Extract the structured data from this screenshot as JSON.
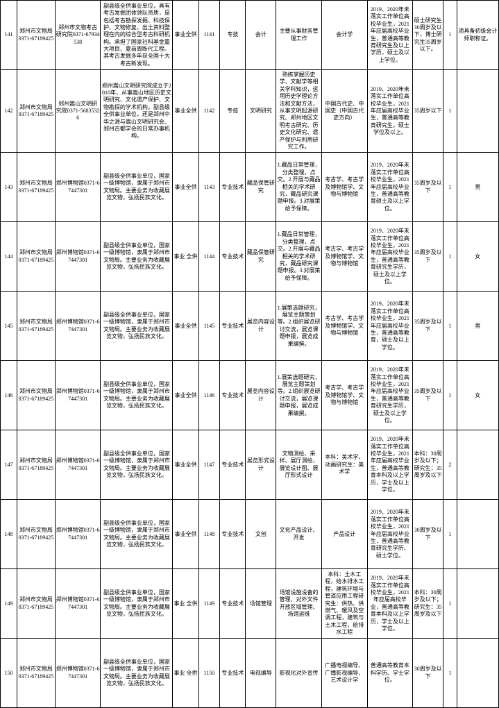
{
  "rows": [
    {
      "num": "141",
      "dept": "郑州市文物局0371-67189425",
      "unit": "郑州市文物考古研究院0371-67934538",
      "desc": "副县级全供事业单位，具有考古发掘团体领队资质，是包括考古勘探发掘、科技保护、文物修复、出土资料整理在内的综合型考古科研机构。承担了国家社科基金重大项目、夏商周断代工程。其考古发掘多年获全国十大考古新发现。",
      "nature": "事业全供",
      "code": "1141",
      "cat": "专技",
      "post": "会计",
      "duty": "主要从事财务管理工作",
      "major": "会计学",
      "grad": "2019、2020年未落实工作单位高校毕业生，2021年应届高校毕业生，普通高等教育研究生及以上学历，硕士及以上学位。",
      "age": "硕士研究生30周岁及以下，博士研究生35周岁以下。",
      "cnt": "1",
      "other": "须具备初级会计师职称证。"
    },
    {
      "num": "142",
      "dept": "郑州市文物局0371-67189425",
      "unit": "郑州嵩山文明研究院0371-56835326",
      "desc": "郑州嵩山文明研究院成立于2010年，从事嵩山地区历史文明研究、文化遗产保护、文物勘探的学术机构。副县级全供事业单位，还是郑州中华之源与嵩山文明研究会、郑州古都学会的日常办事机构。",
      "nature": "事业全供",
      "code": "1142",
      "cat": "专技",
      "post": "文明研究",
      "duty": "熟练掌握历史学、文献学等相关学科知识，运用历史学理论方法和文献方法，从事文明起源研究、郑州地区文明考古研究、历史文化研究、遗产保护与利用研究工作。",
      "major": "中国古代史、中国史（中国古代史方向）",
      "grad": "2019、2020年未落实工作单位高校毕业生，2021年应届高校毕业生，普通高等教育研究生，硕士学位及以上。",
      "age": "35周岁以下",
      "cnt": "1",
      "other": ""
    },
    {
      "num": "143",
      "dept": "郑州市文物局0371-67189425",
      "unit": "郑州博物馆0371-67447301",
      "desc": "副县级全供事业单位，国家一级博物馆，隶属于郑州市文物局。主要业务为收藏展览文物，弘扬民族文化。",
      "nature": "事业全供",
      "code": "1143",
      "cat": "专业技术",
      "post": "藏品保管研究",
      "duty": "1.藏品日常管理，分类整理，点交。2.开展与藏品相关的学术研究，藏品研究课题申报。3.对展策给予保障。",
      "major": "考古学、考古学及博物馆学、文物与博物馆",
      "grad": "2019、2020年未落实工作单位高校毕业生，2021年应届高校毕业生，普通高等教育硕士及以上学位。",
      "age": "35周岁及以下",
      "cnt": "1",
      "other": "男"
    },
    {
      "num": "144",
      "dept": "郑州市文物局0371-67189425",
      "unit": "郑州博物馆0371-67447301",
      "desc": "副县级全供事业单位，国家一级博物馆，隶属于郑州市文物局。主要业务为收藏展览文物，弘扬民族文化。",
      "nature": "事业 全供",
      "code": "1144",
      "cat": "专业技术",
      "post": "藏品保管研究",
      "duty": "1.藏品日常管理，分类整理，点交。2.开展与藏品相关的学术研究，藏品研究课题申报。3.对展策给予保障。",
      "major": "考古学、考古学及博物馆学、文物与博物馆",
      "grad": "2019、2020年未落实工作单位高校毕业生，2021年应届高校毕业生，普通高等教育研究生学历，硕士及以上学位。",
      "age": "35周岁及以下",
      "cnt": "1",
      "other": "女"
    },
    {
      "num": "145",
      "dept": "郑州市文物局0371-67189425",
      "unit": "郑州博物馆0371-67447301",
      "desc": "副县级全供事业单位，国家一级博物馆，隶属于郑州市文物局。主要业务为收藏展览文物，弘扬民族文化。",
      "nature": "事业全供",
      "code": "1145",
      "cat": "专业技术",
      "post": "展览内容设计",
      "duty": "1.展策选题研究，展览主题策划等。2.组织展览研讨交流，展览课题申报，展览成果编撰。",
      "major": "考古学、考古学及博物馆学、文物与博物馆",
      "grad": "2019、2020年未落实工作单位高校毕业生，2021年应届高校毕业生，普通高等教育，硕士及以上学位。",
      "age": "35周岁及以下",
      "cnt": "1",
      "other": "男"
    },
    {
      "num": "146",
      "dept": "郑州市文物局0371-67189425",
      "unit": "郑州博物馆0371-67447301",
      "desc": "副县级全供事业单位，国家一级博物馆，隶属于郑州市文物局。主要业务为收藏展览文物，弘扬民族文化。",
      "nature": "事业全供",
      "code": "1146",
      "cat": "专业技术",
      "post": "展览内容设计",
      "duty": "1.展策选题研究，展览主题策划等。2.组织展览研讨交流，展览课题申报，展览成果编撰。",
      "major": "考古学、考古学及博物馆学、文物与博物馆",
      "grad": "2019、2020年未落实工作单位高校毕业生，2021年应届高校毕业生，普通高等教育研究生学历，硕士及以上学位。",
      "age": "35周岁及以下",
      "cnt": "1",
      "other": "女"
    },
    {
      "num": "147",
      "dept": "郑州市文物局0371-67189425",
      "unit": "郑州博物馆0371-67447301",
      "desc": "副县级全供事业单位，国家一级博物馆，隶属于郑州市文物局。主要业务为收藏展览文物，弘扬民族文化。",
      "nature": "事业全供",
      "code": "1147",
      "cat": "专业技术",
      "post": "展览形式设计",
      "duty": "文物测绘、采样、展厅测绘、展览设计图、展厅形式设计",
      "major": "本科：美术学，动画研究生：美术学",
      "grad": "2019、2020年未落实工作单位高校毕业生，2021年应届高校毕业生，普通高等教育本科及以上学历，学士及以上学位。",
      "age": "本科：30周岁及以下；研究生：35周岁及以下",
      "cnt": "2",
      "other": ""
    },
    {
      "num": "148",
      "dept": "郑州市文物局0371-67189425",
      "unit": "郑州博物馆0371-67447301",
      "desc": "副县级全供事业单位，国家一级博物馆，隶属于郑州市文物局。主要业务为收藏展览文物，弘扬民族文化。",
      "nature": "事业全供",
      "code": "1148",
      "cat": "专业技术",
      "post": "文创",
      "duty": "文化产品设计、开发",
      "major": "产品设计",
      "grad": "2019、2020年未落实工作单位高校毕业生，2021年应届高校毕业生，普通高等教育研究生学历、硕士学位。",
      "age": "30周岁及以下",
      "cnt": "1",
      "other": ""
    },
    {
      "num": "149",
      "dept": "郑州市文物局0371-67189425",
      "unit": "郑州博物馆0371-67447301",
      "desc": "副县级全供事业单位，国家一级博物馆，隶属于郑州市文物局。主要业务为收藏展览文物，弘扬民族文化。",
      "nature": "事业 全供",
      "code": "1149",
      "cat": "专业技术",
      "post": "场馆管理",
      "duty": "场馆设施设备的管理、对外文件开放区域管理、场馆运维",
      "major": "本科：土木工程，给水排水工程，建筑环境与管道应用工程研究生：供热、供燃气、暖风及空调工程，建筑与土木工程，给排水工程",
      "grad": "2019、2020年未落实工作单位高校毕业生，2021年应届高校毕业，普通高等教育本科及以上学历，学士及以上学位。",
      "age": "本科：30周岁及以下；研究生：35周岁及以下",
      "cnt": "1",
      "other": ""
    },
    {
      "num": "150",
      "dept": "郑州市文物局0371-67189425",
      "unit": "郑州博物馆0371-67447301",
      "desc": "副县级全供事业单位，国家一级博物馆，隶属于郑州市文物局。主要业务为收藏展览文物，弘扬民族文化。",
      "nature": "事业 全供",
      "code": "1150",
      "cat": "专业技术",
      "post": "电视编导",
      "duty": "影视化对外宣传",
      "major": "广播电视编导、广播影视编导、艺术设计学",
      "grad": "普通高等教育本科学历、学士学位。",
      "age": "30周岁及以下",
      "cnt": "1",
      "other": ""
    }
  ]
}
